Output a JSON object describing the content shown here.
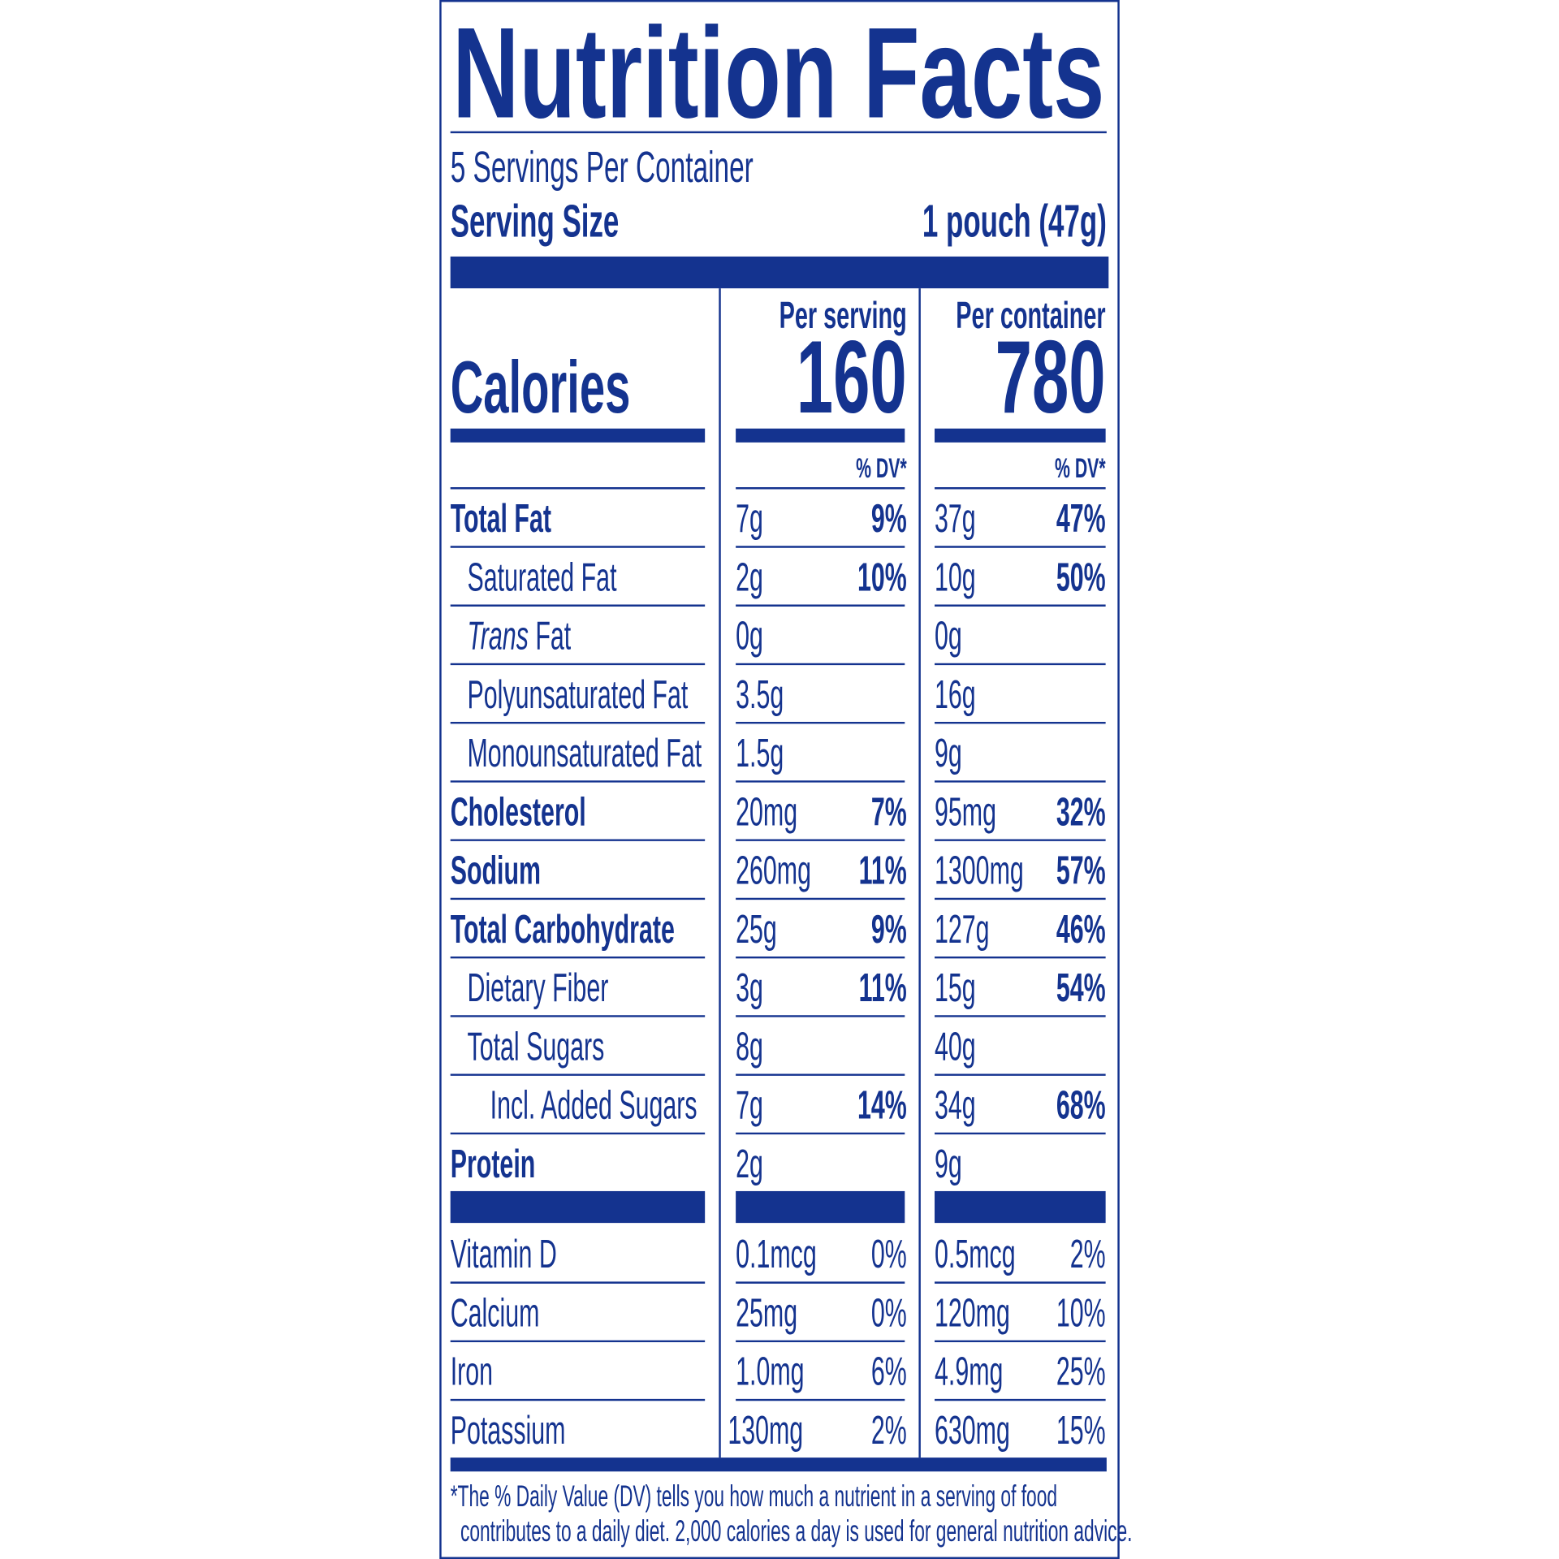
{
  "header": {
    "title": "Nutrition Facts",
    "servings_per_container": "5 Servings Per Container",
    "serving_size_label": "Serving Size",
    "serving_size_value": "1 pouch (47g)"
  },
  "columns": {
    "per_serving": "Per serving",
    "per_container": "Per container",
    "dv_header": "% DV*"
  },
  "calories": {
    "label": "Calories",
    "per_serving": "160",
    "per_container": "780"
  },
  "nutrients": [
    {
      "label": "Total Fat",
      "serving": {
        "amount": "7g",
        "dv": "9%"
      },
      "container": {
        "amount": "37g",
        "dv": "47%"
      }
    },
    {
      "label": "Saturated Fat",
      "serving": {
        "amount": "2g",
        "dv": "10%"
      },
      "container": {
        "amount": "10g",
        "dv": "50%"
      }
    },
    {
      "label_italic": "Trans",
      "label": "Fat",
      "serving": {
        "amount": "0g"
      },
      "container": {
        "amount": "0g"
      }
    },
    {
      "label": "Polyunsaturated Fat",
      "serving": {
        "amount": "3.5g"
      },
      "container": {
        "amount": "16g"
      }
    },
    {
      "label": "Monounsaturated Fat",
      "serving": {
        "amount": "1.5g"
      },
      "container": {
        "amount": "9g"
      }
    },
    {
      "label": "Cholesterol",
      "serving": {
        "amount": "20mg",
        "dv": "7%"
      },
      "container": {
        "amount": "95mg",
        "dv": "32%"
      }
    },
    {
      "label": "Sodium",
      "serving": {
        "amount": "260mg",
        "dv": "11%"
      },
      "container": {
        "amount": "1300mg",
        "dv": "57%"
      }
    },
    {
      "label": "Total Carbohydrate",
      "serving": {
        "amount": "25g",
        "dv": "9%"
      },
      "container": {
        "amount": "127g",
        "dv": "46%"
      }
    },
    {
      "label": "Dietary Fiber",
      "serving": {
        "amount": "3g",
        "dv": "11%"
      },
      "container": {
        "amount": "15g",
        "dv": "54%"
      }
    },
    {
      "label": "Total Sugars",
      "serving": {
        "amount": "8g"
      },
      "container": {
        "amount": "40g"
      }
    },
    {
      "label": "Incl. Added Sugars",
      "serving": {
        "amount": "7g",
        "dv": "14%"
      },
      "container": {
        "amount": "34g",
        "dv": "68%"
      }
    },
    {
      "label": "Protein",
      "serving": {
        "amount": "2g"
      },
      "container": {
        "amount": "9g"
      }
    }
  ],
  "vitamins": [
    {
      "label": "Vitamin D",
      "serving": {
        "amount": "0.1mcg",
        "dv": "0%"
      },
      "container": {
        "amount": "0.5mcg",
        "dv": "2%"
      }
    },
    {
      "label": "Calcium",
      "serving": {
        "amount": "25mg",
        "dv": "0%"
      },
      "container": {
        "amount": "120mg",
        "dv": "10%"
      }
    },
    {
      "label": "Iron",
      "serving": {
        "amount": "1.0mg",
        "dv": "6%"
      },
      "container": {
        "amount": "4.9mg",
        "dv": "25%"
      }
    },
    {
      "label": "Potassium",
      "serving": {
        "amount": "130mg",
        "dv": "2%"
      },
      "container": {
        "amount": "630mg",
        "dv": "15%"
      }
    }
  ],
  "footnote": [
    "*The % Daily Value (DV) tells you how much a nutrient in a serving of food",
    "contributes to a daily diet. 2,000 calories a day is used for general nutrition advice."
  ]
}
